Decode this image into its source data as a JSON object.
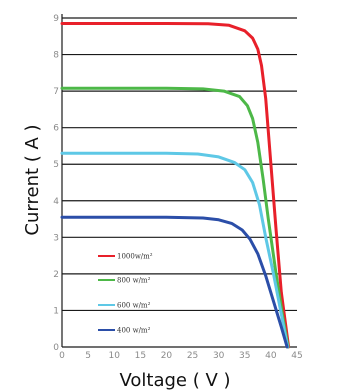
{
  "chart_data": {
    "type": "line",
    "title": "",
    "xlabel": "Voltage ( V )",
    "ylabel": "Current ( A )",
    "xlim": [
      0,
      45
    ],
    "ylim": [
      0,
      9
    ],
    "xticks": [
      0,
      5,
      10,
      15,
      20,
      25,
      30,
      35,
      40,
      45
    ],
    "yticks": [
      0,
      1,
      2,
      3,
      4,
      5,
      6,
      7,
      8,
      9
    ],
    "grid": "horizontal",
    "legend_position": "lower-left",
    "series": [
      {
        "name": "1000w/m²",
        "color": "#e8202a",
        "x": [
          0,
          20,
          28,
          32,
          35,
          36.5,
          37.5,
          38.2,
          39,
          40,
          41,
          42,
          43.4
        ],
        "y": [
          8.85,
          8.85,
          8.84,
          8.8,
          8.65,
          8.45,
          8.15,
          7.7,
          6.8,
          5.0,
          3.2,
          1.5,
          0
        ]
      },
      {
        "name": "800 w/m²",
        "color": "#4db848",
        "x": [
          0,
          20,
          27,
          31,
          34,
          35.5,
          36.5,
          37.5,
          38.5,
          39.5,
          41,
          42.3,
          43.3
        ],
        "y": [
          7.08,
          7.08,
          7.06,
          7.0,
          6.85,
          6.6,
          6.25,
          5.6,
          4.6,
          3.5,
          2.0,
          0.8,
          0
        ]
      },
      {
        "name": "600 w/m²",
        "color": "#5ec8e6",
        "x": [
          0,
          20,
          26,
          30,
          33,
          35,
          36.5,
          37.8,
          39,
          40.5,
          42,
          43.2
        ],
        "y": [
          5.3,
          5.3,
          5.28,
          5.2,
          5.05,
          4.85,
          4.5,
          3.9,
          3.0,
          2.0,
          0.9,
          0
        ]
      },
      {
        "name": "400 w/m²",
        "color": "#2b4ea8",
        "x": [
          0,
          20,
          27,
          30,
          32.5,
          34.5,
          36,
          37.5,
          39,
          40.5,
          42,
          43.1
        ],
        "y": [
          3.55,
          3.55,
          3.53,
          3.48,
          3.38,
          3.2,
          2.95,
          2.55,
          1.95,
          1.25,
          0.55,
          0
        ]
      }
    ]
  }
}
